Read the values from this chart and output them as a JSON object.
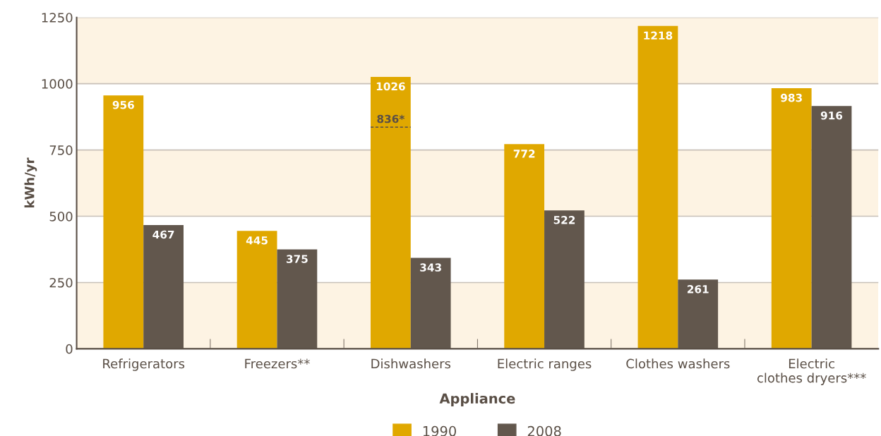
{
  "chart_data": {
    "type": "bar",
    "xlabel": "Appliance",
    "ylabel": "kWh/yr",
    "categories": [
      "Refrigerators",
      "Freezers**",
      "Dishwashers",
      "Electric ranges",
      "Clothes washers",
      "Electric\nclothes dryers***"
    ],
    "series": [
      {
        "name": "1990",
        "color": "#e0a800",
        "values": [
          956,
          445,
          1026,
          772,
          1218,
          983
        ]
      },
      {
        "name": "2008",
        "color": "#62574d",
        "values": [
          467,
          375,
          343,
          522,
          261,
          916
        ]
      }
    ],
    "data_labels": true,
    "ylim": [
      0,
      1250
    ],
    "yticks": [
      0,
      250,
      500,
      750,
      1000,
      1250
    ],
    "grid": "y",
    "bands": [
      {
        "axis": "y",
        "from": 0,
        "to": 250,
        "color": "#fdf3e3"
      },
      {
        "axis": "y",
        "from": 500,
        "to": 750,
        "color": "#fdf3e3"
      },
      {
        "axis": "y",
        "from": 1000,
        "to": 1250,
        "color": "#fdf3e3"
      }
    ],
    "annotations": [
      {
        "text": "836*",
        "x": "Dishwashers",
        "y": 836
      }
    ],
    "legend": "bottom"
  }
}
